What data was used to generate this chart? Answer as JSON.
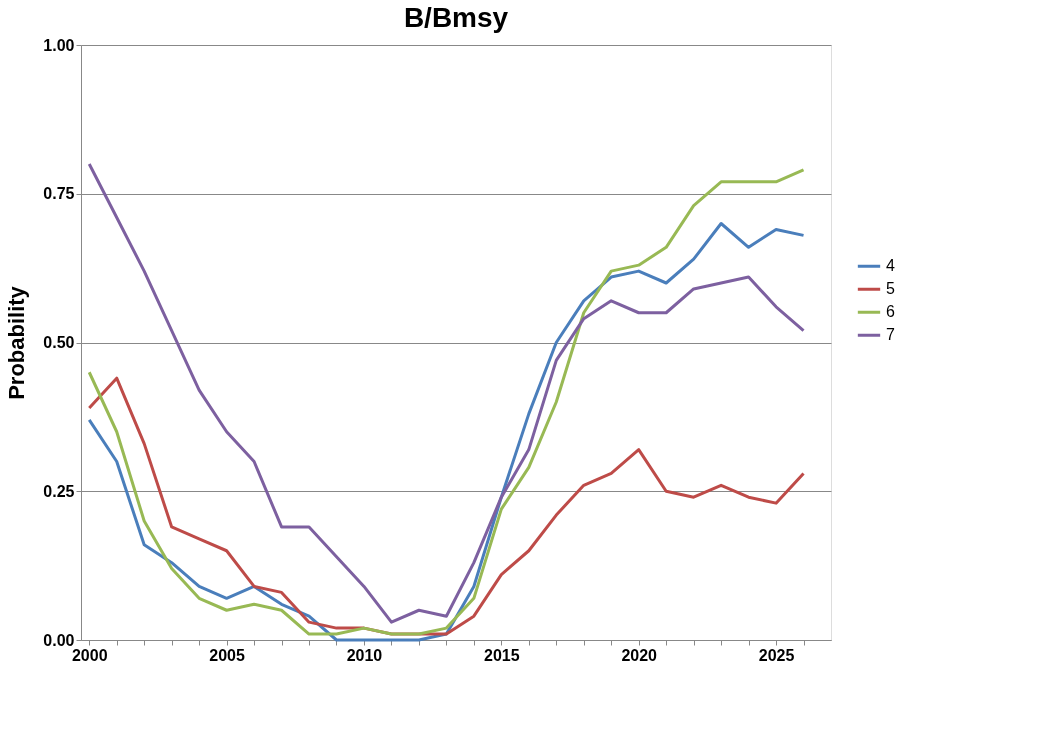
{
  "chart_data": {
    "type": "line",
    "title": "B/Bmsy",
    "ylabel": "Probability",
    "x": [
      2000,
      2001,
      2002,
      2003,
      2004,
      2005,
      2006,
      2007,
      2008,
      2009,
      2010,
      2011,
      2012,
      2013,
      2014,
      2015,
      2016,
      2017,
      2018,
      2019,
      2020,
      2021,
      2022,
      2023,
      2024,
      2025,
      2026
    ],
    "series": [
      {
        "name": "4",
        "color": "#4a7ebb",
        "values": [
          0.37,
          0.3,
          0.16,
          0.13,
          0.09,
          0.07,
          0.09,
          0.06,
          0.04,
          0.0,
          0.0,
          0.0,
          0.0,
          0.01,
          0.09,
          0.24,
          0.38,
          0.5,
          0.57,
          0.61,
          0.62,
          0.6,
          0.64,
          0.7,
          0.66,
          0.69,
          0.68
        ]
      },
      {
        "name": "5",
        "color": "#be4b48",
        "values": [
          0.39,
          0.44,
          0.33,
          0.19,
          0.17,
          0.15,
          0.09,
          0.08,
          0.03,
          0.02,
          0.02,
          0.01,
          0.01,
          0.01,
          0.04,
          0.11,
          0.15,
          0.21,
          0.26,
          0.28,
          0.32,
          0.25,
          0.24,
          0.26,
          0.24,
          0.23,
          0.28
        ]
      },
      {
        "name": "6",
        "color": "#98b954",
        "values": [
          0.45,
          0.35,
          0.2,
          0.12,
          0.07,
          0.05,
          0.06,
          0.05,
          0.01,
          0.01,
          0.02,
          0.01,
          0.01,
          0.02,
          0.07,
          0.22,
          0.29,
          0.4,
          0.55,
          0.62,
          0.63,
          0.66,
          0.73,
          0.77,
          0.77,
          0.77,
          0.79
        ]
      },
      {
        "name": "7",
        "color": "#7d60a0",
        "values": [
          0.8,
          0.71,
          0.62,
          0.52,
          0.42,
          0.35,
          0.3,
          0.19,
          0.19,
          0.14,
          0.09,
          0.03,
          0.05,
          0.04,
          0.13,
          0.24,
          0.32,
          0.47,
          0.54,
          0.57,
          0.55,
          0.55,
          0.59,
          0.6,
          0.61,
          0.56,
          0.52
        ]
      }
    ],
    "xlim": [
      1999.7,
      2027
    ],
    "xticks": [
      2000,
      {
        "value": 2001,
        "label": null
      },
      {
        "value": 2002,
        "label": null
      },
      {
        "value": 2003,
        "label": null
      },
      {
        "value": 2004,
        "label": null
      },
      2005,
      {
        "value": 2006,
        "label": null
      },
      {
        "value": 2007,
        "label": null
      },
      {
        "value": 2008,
        "label": null
      },
      {
        "value": 2009,
        "label": null
      },
      2010,
      {
        "value": 2011,
        "label": null
      },
      {
        "value": 2012,
        "label": null
      },
      {
        "value": 2013,
        "label": null
      },
      {
        "value": 2014,
        "label": null
      },
      2015,
      {
        "value": 2016,
        "label": null
      },
      {
        "value": 2017,
        "label": null
      },
      {
        "value": 2018,
        "label": null
      },
      {
        "value": 2019,
        "label": null
      },
      2020,
      {
        "value": 2021,
        "label": null
      },
      {
        "value": 2022,
        "label": null
      },
      {
        "value": 2023,
        "label": null
      },
      {
        "value": 2024,
        "label": null
      },
      2025,
      {
        "value": 2026,
        "label": null
      }
    ],
    "ylim": [
      0,
      1
    ],
    "yticks": [
      {
        "value": 0,
        "label": "0.00"
      },
      {
        "value": 0.25,
        "label": "0.25"
      },
      {
        "value": 0.5,
        "label": "0.50"
      },
      {
        "value": 0.75,
        "label": "0.75"
      },
      {
        "value": 1,
        "label": "1.00"
      }
    ],
    "grid": "y",
    "legend": "right",
    "marker": "none",
    "line_style": "solid"
  }
}
